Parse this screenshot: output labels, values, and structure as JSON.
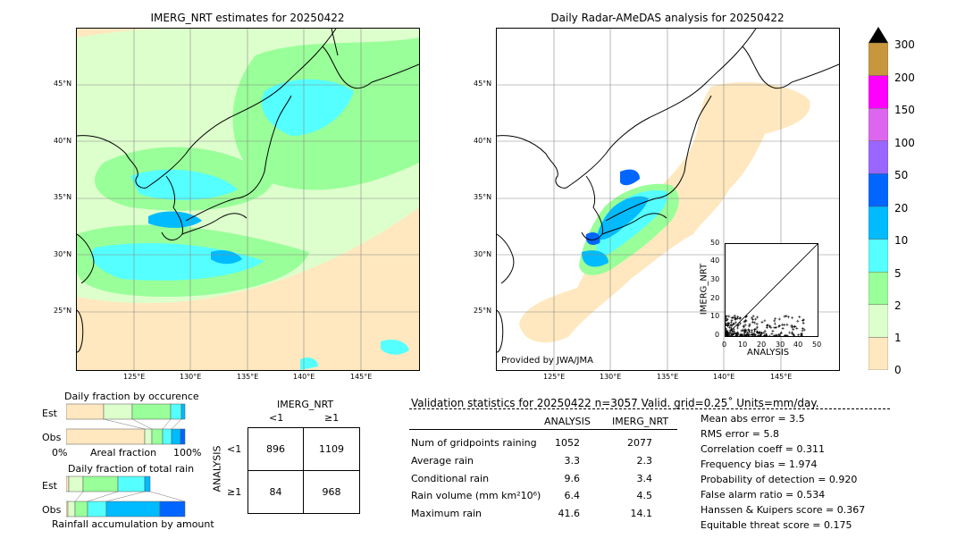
{
  "left_map": {
    "title": "IMERG_NRT estimates for 20250422",
    "lat_labels": [
      "45°N",
      "40°N",
      "35°N",
      "30°N",
      "25°N"
    ],
    "lon_labels": [
      "125°E",
      "130°E",
      "135°E",
      "140°E",
      "145°E"
    ]
  },
  "right_map": {
    "title": "Daily Radar-AMeDAS analysis for 20250422",
    "lat_labels": [
      "45°N",
      "40°N",
      "35°N",
      "30°N",
      "25°N"
    ],
    "lon_labels": [
      "125°E",
      "130°E",
      "135°E",
      "140°E",
      "145°E"
    ],
    "credit": "Provided by JWA/JMA"
  },
  "scatter": {
    "xlabel": "ANALYSIS",
    "ylabel": "IMERG_NRT",
    "ticks": [
      "0",
      "10",
      "20",
      "30",
      "40",
      "50"
    ]
  },
  "colorbar": {
    "labels": [
      "300",
      "200",
      "150",
      "100",
      "50",
      "20",
      "10",
      "5",
      "2",
      "1",
      "0"
    ],
    "colors": [
      "#c8963c",
      "#ff00ff",
      "#dd66ee",
      "#9966ff",
      "#0066ff",
      "#00bbff",
      "#55ffff",
      "#99ff99",
      "#ddffcc",
      "#ffe8bf"
    ]
  },
  "fraction_occurrence": {
    "title": "Daily fraction by occurence",
    "est_label": "Est",
    "obs_label": "Obs",
    "axis_left": "0%",
    "axis_mid": "Areal fraction",
    "axis_right": "100%"
  },
  "fraction_total": {
    "title": "Daily fraction of total rain",
    "est_label": "Est",
    "obs_label": "Obs",
    "footer": "Rainfall accumulation by amount"
  },
  "contingency": {
    "col_header": "IMERG_NRT",
    "row_header": "ANALYSIS",
    "col_labels": [
      "<1",
      "≥1"
    ],
    "row_labels": [
      "<1",
      "≥1"
    ],
    "cells": [
      [
        "896",
        "1109"
      ],
      [
        "84",
        "968"
      ]
    ]
  },
  "validation": {
    "header": "Validation statistics for 20250422  n=3057 Valid. grid=0.25˚ Units=mm/day.",
    "col_analysis": "ANALYSIS",
    "col_imerg": "IMERG_NRT",
    "rows": [
      {
        "label": "Num of gridpoints raining",
        "analysis": "1052",
        "imerg": "2077"
      },
      {
        "label": "Average rain",
        "analysis": "3.3",
        "imerg": "2.3"
      },
      {
        "label": "Conditional rain",
        "analysis": "9.6",
        "imerg": "3.4"
      },
      {
        "label": "Rain volume (mm km²10⁶)",
        "analysis": "6.4",
        "imerg": "4.5"
      },
      {
        "label": "Maximum rain",
        "analysis": "41.6",
        "imerg": "14.1"
      }
    ],
    "scores": [
      "Mean abs error =    3.5",
      "RMS error =    5.8",
      "Correlation coeff =  0.311",
      "Frequency bias =  1.974",
      "Probability of detection =  0.920",
      "False alarm ratio =  0.534",
      "Hanssen & Kuipers score =  0.367",
      "Equitable threat score =  0.175"
    ]
  },
  "chart_data": [
    {
      "type": "table",
      "title": "IMERG_NRT",
      "columns": [
        "<1",
        "≥1"
      ],
      "rows": [
        {
          "label": "<1",
          "values": [
            896,
            1109
          ]
        },
        {
          "label": "≥1",
          "values": [
            84,
            968
          ]
        }
      ]
    },
    {
      "type": "scatter",
      "xlabel": "ANALYSIS",
      "ylabel": "IMERG_NRT",
      "xlim": [
        0,
        50
      ],
      "ylim": [
        0,
        50
      ]
    }
  ]
}
